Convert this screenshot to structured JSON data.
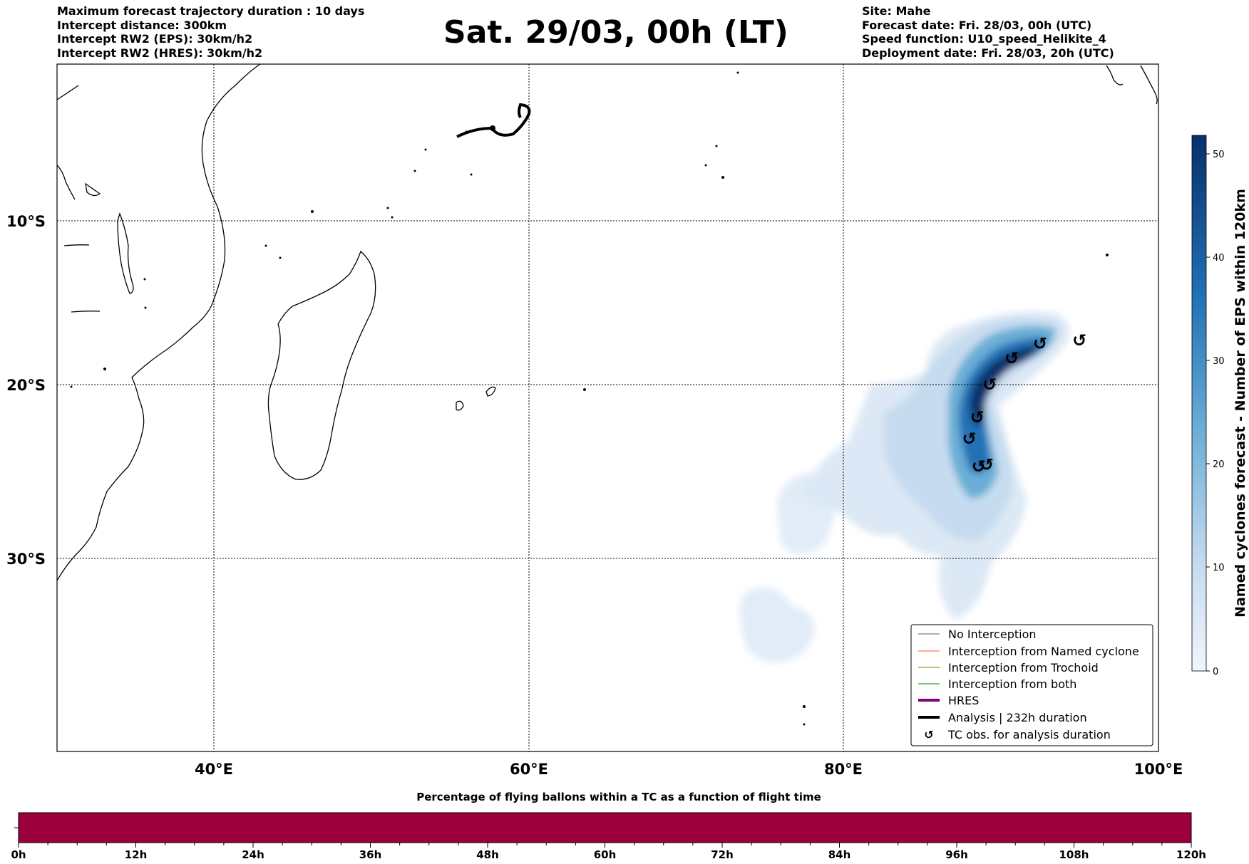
{
  "header": {
    "left_lines": [
      "Maximum forecast trajectory duration : 10 days",
      "Intercept distance: 300km",
      "Intercept RW2 (EPS):  30km/h2",
      "Intercept RW2 (HRES): 30km/h2"
    ],
    "title": "Sat. 29/03, 00h (LT)",
    "right_lines": [
      "Site: Mahe",
      "Forecast date: Fri. 28/03, 00h (UTC)",
      "Speed function: U10_speed_Helikite_4",
      "Deployment date: Fri. 28/03, 20h (UTC)"
    ]
  },
  "map": {
    "lat_labels": [
      "10°S",
      "20°S",
      "30°S"
    ],
    "lon_labels": [
      "40°E",
      "60°E",
      "80°E",
      "100°E"
    ],
    "colors": {
      "coast": "#000000",
      "analysis_track": "#000000"
    }
  },
  "legend": {
    "items": [
      {
        "label": "No Interception",
        "color": "#808080"
      },
      {
        "label": "Interception from Named cyclone",
        "color": "#ff7f50"
      },
      {
        "label": "Interception from Trochoid",
        "color": "#9a9a20"
      },
      {
        "label": "Interception from both",
        "color": "#2ca02c"
      },
      {
        "label": "HRES",
        "color": "#800080"
      },
      {
        "label": "Analysis | 232h duration",
        "color": "#000000"
      },
      {
        "label": "TC obs. for analysis duration",
        "color": "#000000",
        "icon": "cyclone-symbol-icon"
      }
    ]
  },
  "colorbar": {
    "label": "Named cyclones forecast - Number of EPS within 120km",
    "ticks": [
      "0",
      "10",
      "20",
      "30",
      "40",
      "50"
    ],
    "colors": {
      "low": "#f0f5fc",
      "high": "#08306b"
    }
  },
  "time_bar": {
    "title": "Percentage of flying ballons within a TC as a function of flight time",
    "ticks": [
      "0h",
      "12h",
      "24h",
      "36h",
      "48h",
      "60h",
      "72h",
      "84h",
      "96h",
      "108h",
      "120h"
    ],
    "color": "#9c003c"
  },
  "tc_obs": {
    "symbol": "↺",
    "points": [
      {
        "lon": 95.0,
        "lat": -17.3
      },
      {
        "lon": 92.5,
        "lat": -17.5
      },
      {
        "lon": 90.7,
        "lat": -18.4
      },
      {
        "lon": 89.3,
        "lat": -20.0
      },
      {
        "lon": 88.5,
        "lat": -22.0
      },
      {
        "lon": 88.0,
        "lat": -23.3
      },
      {
        "lon": 89.1,
        "lat": -24.9
      },
      {
        "lon": 88.6,
        "lat": -25.0
      }
    ]
  }
}
